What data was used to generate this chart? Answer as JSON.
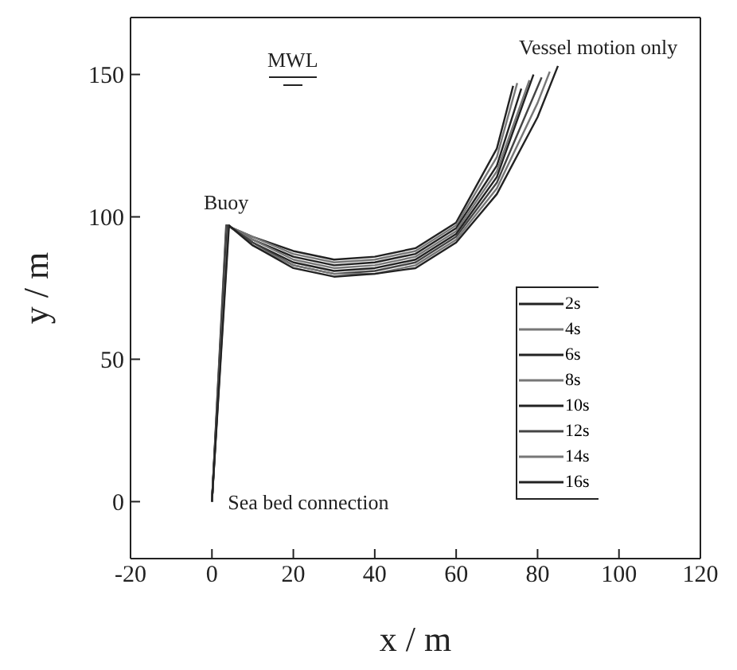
{
  "chart_data": {
    "type": "line",
    "xlabel": "x / m",
    "ylabel": "y / m",
    "xlim": [
      -20,
      120
    ],
    "xticks": [
      -20,
      0,
      20,
      40,
      60,
      80,
      100,
      120
    ],
    "ylim": [
      -20,
      170
    ],
    "yticks": [
      0,
      50,
      100,
      150
    ],
    "grid": false,
    "legend": "right",
    "marker": "none",
    "line_style": "solid",
    "annotations": [
      "MWL",
      {
        "text": "Buoy",
        "x": 3.5,
        "y": 97
      },
      "Vessel motion only",
      {
        "text": "Sea bed connection",
        "x": 0,
        "y": 0
      }
    ],
    "series": [
      {
        "name": "2s",
        "color": "#222222",
        "x": [
          0,
          3.5,
          10,
          20,
          30,
          40,
          50,
          60,
          70,
          74
        ],
        "values": [
          0,
          97,
          93,
          88,
          85,
          86,
          89,
          98,
          124,
          146
        ]
      },
      {
        "name": "4s",
        "color": "#777777",
        "x": [
          0,
          3.6,
          10,
          20,
          30,
          40,
          50,
          60,
          70,
          75
        ],
        "values": [
          0,
          97,
          93,
          87,
          84,
          85,
          88,
          97,
          121,
          147
        ]
      },
      {
        "name": "6s",
        "color": "#222222",
        "x": [
          0,
          3.7,
          10,
          20,
          30,
          40,
          50,
          60,
          70,
          76
        ],
        "values": [
          0,
          97,
          92,
          86,
          83,
          84,
          87,
          96,
          118,
          145
        ]
      },
      {
        "name": "8s",
        "color": "#777777",
        "x": [
          0,
          3.8,
          10,
          20,
          30,
          40,
          50,
          60,
          70,
          78
        ],
        "values": [
          0,
          97,
          92,
          85,
          82,
          83,
          86,
          95,
          116,
          148
        ]
      },
      {
        "name": "10s",
        "color": "#222222",
        "x": [
          0,
          3.9,
          10,
          20,
          30,
          40,
          50,
          60,
          70,
          79
        ],
        "values": [
          0,
          97,
          91,
          84,
          81,
          82,
          85,
          94,
          114,
          150
        ]
      },
      {
        "name": "12s",
        "color": "#444444",
        "x": [
          0,
          4,
          10,
          20,
          30,
          40,
          50,
          60,
          70,
          81
        ],
        "values": [
          0,
          97,
          91,
          83,
          80,
          81,
          84,
          93,
          112,
          149
        ]
      },
      {
        "name": "14s",
        "color": "#777777",
        "x": [
          0,
          4.1,
          10,
          20,
          30,
          40,
          50,
          60,
          70,
          80,
          83
        ],
        "values": [
          0,
          97,
          90,
          83,
          80,
          80,
          83,
          92,
          110,
          140,
          151
        ]
      },
      {
        "name": "16s",
        "color": "#222222",
        "x": [
          0,
          4.2,
          10,
          20,
          30,
          40,
          50,
          60,
          70,
          80,
          85
        ],
        "values": [
          0,
          97,
          90,
          82,
          79,
          80,
          82,
          91,
          108,
          135,
          153
        ]
      }
    ]
  }
}
